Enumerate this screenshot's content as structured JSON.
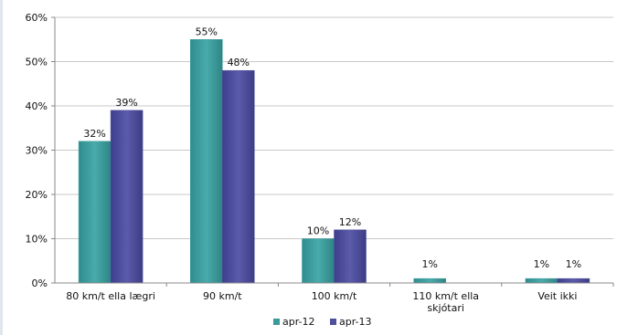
{
  "chart_data": {
    "type": "bar",
    "categories": [
      [
        "80 km/t ella lægri"
      ],
      [
        "90 km/t"
      ],
      [
        "100 km/t"
      ],
      [
        "110 km/t ella",
        "skjótari"
      ],
      [
        "Veit ikki"
      ]
    ],
    "series": [
      {
        "name": "apr-12",
        "values": [
          32,
          55,
          10,
          1,
          1
        ],
        "labels": [
          "32%",
          "55%",
          "10%",
          "1%",
          "1%"
        ],
        "color": "#3b9a9a"
      },
      {
        "name": "apr-13",
        "values": [
          39,
          48,
          12,
          0,
          1
        ],
        "labels": [
          "39%",
          "48%",
          "12%",
          "",
          "1%"
        ],
        "color": "#4f4f9c"
      }
    ],
    "yticks": [
      "0%",
      "10%",
      "20%",
      "30%",
      "40%",
      "50%",
      "60%"
    ],
    "ylim": [
      0,
      60
    ],
    "grid": true,
    "legend": "bottom"
  }
}
